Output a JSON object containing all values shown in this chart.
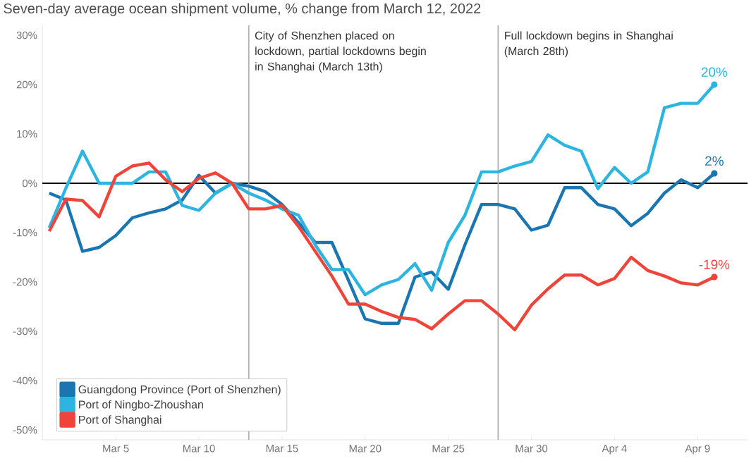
{
  "chart_data": {
    "type": "line",
    "title": "Seven-day average ocean shipment volume, % change from March 12, 2022",
    "x": [
      "2022-03-01",
      "2022-03-02",
      "2022-03-03",
      "2022-03-04",
      "2022-03-05",
      "2022-03-06",
      "2022-03-07",
      "2022-03-08",
      "2022-03-09",
      "2022-03-10",
      "2022-03-11",
      "2022-03-12",
      "2022-03-13",
      "2022-03-14",
      "2022-03-15",
      "2022-03-16",
      "2022-03-17",
      "2022-03-18",
      "2022-03-19",
      "2022-03-20",
      "2022-03-21",
      "2022-03-22",
      "2022-03-23",
      "2022-03-24",
      "2022-03-25",
      "2022-03-26",
      "2022-03-27",
      "2022-03-28",
      "2022-03-29",
      "2022-03-30",
      "2022-03-31",
      "2022-04-01",
      "2022-04-02",
      "2022-04-03",
      "2022-04-04",
      "2022-04-05",
      "2022-04-06",
      "2022-04-07",
      "2022-04-08",
      "2022-04-09",
      "2022-04-10"
    ],
    "series": [
      {
        "name": "Guangdong Province (Port of Shenzhen)",
        "color": "#1a76b0",
        "values": [
          -2,
          -3.4,
          -13.8,
          -13,
          -10.6,
          -7,
          -6,
          -5.2,
          -3.4,
          1.6,
          -2,
          0,
          -0.6,
          -1.7,
          -4.3,
          -8,
          -12,
          -12,
          -19.7,
          -27.5,
          -28.4,
          -28.4,
          -19,
          -18,
          -21.5,
          -12.5,
          -4.3,
          -4.3,
          -5.2,
          -9.5,
          -8.5,
          -0.9,
          -0.9,
          -4.3,
          -5.2,
          -8.6,
          -6.1,
          -2,
          0.7,
          -0.9,
          2
        ],
        "value_labels": [
          null,
          null,
          null,
          null,
          null,
          null,
          null,
          null,
          null,
          null,
          null,
          null,
          null,
          null,
          null,
          null,
          null,
          null,
          null,
          null,
          null,
          null,
          null,
          null,
          null,
          null,
          null,
          null,
          null,
          null,
          null,
          null,
          null,
          null,
          null,
          null,
          null,
          null,
          null,
          null,
          "2%"
        ]
      },
      {
        "name": "Port of Ningbo-Zhoushan",
        "color": "#2bb5e0",
        "values": [
          -9,
          -1,
          6.5,
          0,
          0,
          0,
          2.3,
          2.3,
          -4.5,
          -5.5,
          -2,
          0,
          -2,
          -3.4,
          -5.2,
          -6.5,
          -12.5,
          -17.5,
          -17.5,
          -22.6,
          -20.6,
          -19.5,
          -16.3,
          -21.7,
          -12,
          -6.5,
          2.3,
          2.3,
          3.5,
          4.4,
          9.8,
          7.7,
          6.5,
          -1.1,
          3.2,
          0,
          2.3,
          15.3,
          16.2,
          16.2,
          20
        ],
        "value_labels": [
          null,
          null,
          null,
          null,
          null,
          null,
          null,
          null,
          null,
          null,
          null,
          null,
          null,
          null,
          null,
          null,
          null,
          null,
          null,
          null,
          null,
          null,
          null,
          null,
          null,
          null,
          null,
          null,
          null,
          null,
          null,
          null,
          null,
          null,
          null,
          null,
          null,
          null,
          null,
          null,
          "20%"
        ]
      },
      {
        "name": "Port of Shanghai",
        "color": "#f0443a",
        "values": [
          -9.7,
          -3.2,
          -3.5,
          -6.8,
          1.4,
          3.5,
          4.1,
          0.7,
          -1.7,
          1,
          2.1,
          0,
          -5.2,
          -5.2,
          -4.5,
          -8.8,
          -13.8,
          -18.8,
          -24.5,
          -24.5,
          -26,
          -27.2,
          -27.6,
          -29.5,
          -26.5,
          -23.8,
          -23.8,
          -26.5,
          -29.7,
          -24.7,
          -21.4,
          -18.6,
          -18.6,
          -20.6,
          -19.3,
          -15,
          -17.7,
          -18.8,
          -20.2,
          -20.6,
          -19
        ],
        "value_labels": [
          null,
          null,
          null,
          null,
          null,
          null,
          null,
          null,
          null,
          null,
          null,
          null,
          null,
          null,
          null,
          null,
          null,
          null,
          null,
          null,
          null,
          null,
          null,
          null,
          null,
          null,
          null,
          null,
          null,
          null,
          null,
          null,
          null,
          null,
          null,
          null,
          null,
          null,
          null,
          null,
          "-19%"
        ]
      }
    ],
    "xlim": [
      "2022-02-28T14:00",
      "2022-04-12"
    ],
    "xticks": [
      {
        "value": "2022-03-05",
        "label": "Mar 5"
      },
      {
        "value": "2022-03-10",
        "label": "Mar 10"
      },
      {
        "value": "2022-03-15",
        "label": "Mar 15"
      },
      {
        "value": "2022-03-20",
        "label": "Mar 20"
      },
      {
        "value": "2022-03-25",
        "label": "Mar 25"
      },
      {
        "value": "2022-03-30",
        "label": "Mar 30"
      },
      {
        "value": "2022-04-04",
        "label": "Apr 4"
      },
      {
        "value": "2022-04-09",
        "label": "Apr 9"
      }
    ],
    "ylim": [
      -52,
      32
    ],
    "yticks": [
      {
        "value": 30,
        "label": "30%"
      },
      {
        "value": 20,
        "label": "20%"
      },
      {
        "value": 10,
        "label": "10%"
      },
      {
        "value": 0,
        "label": "0%"
      },
      {
        "value": -10,
        "label": "-10%"
      },
      {
        "value": -20,
        "label": "-20%"
      },
      {
        "value": -30,
        "label": "-30%"
      },
      {
        "value": -40,
        "label": "-40%"
      },
      {
        "value": -50,
        "label": "-50%"
      }
    ],
    "ref_lines": [
      {
        "axis": "y",
        "value": 0,
        "color": "#000000"
      },
      {
        "axis": "x",
        "value": "2022-03-13",
        "label": "City of Shenzhen placed on lockdown, partial lockdowns begin in Shanghai (March 13th)",
        "color": "#b0b0b0"
      },
      {
        "axis": "x",
        "value": "2022-03-28",
        "label": "Full lockdown begins in Shanghai (March 28th)",
        "color": "#b0b0b0"
      }
    ],
    "grid": false,
    "legend": "bottom left",
    "marker": "none",
    "line_style": "solid"
  }
}
